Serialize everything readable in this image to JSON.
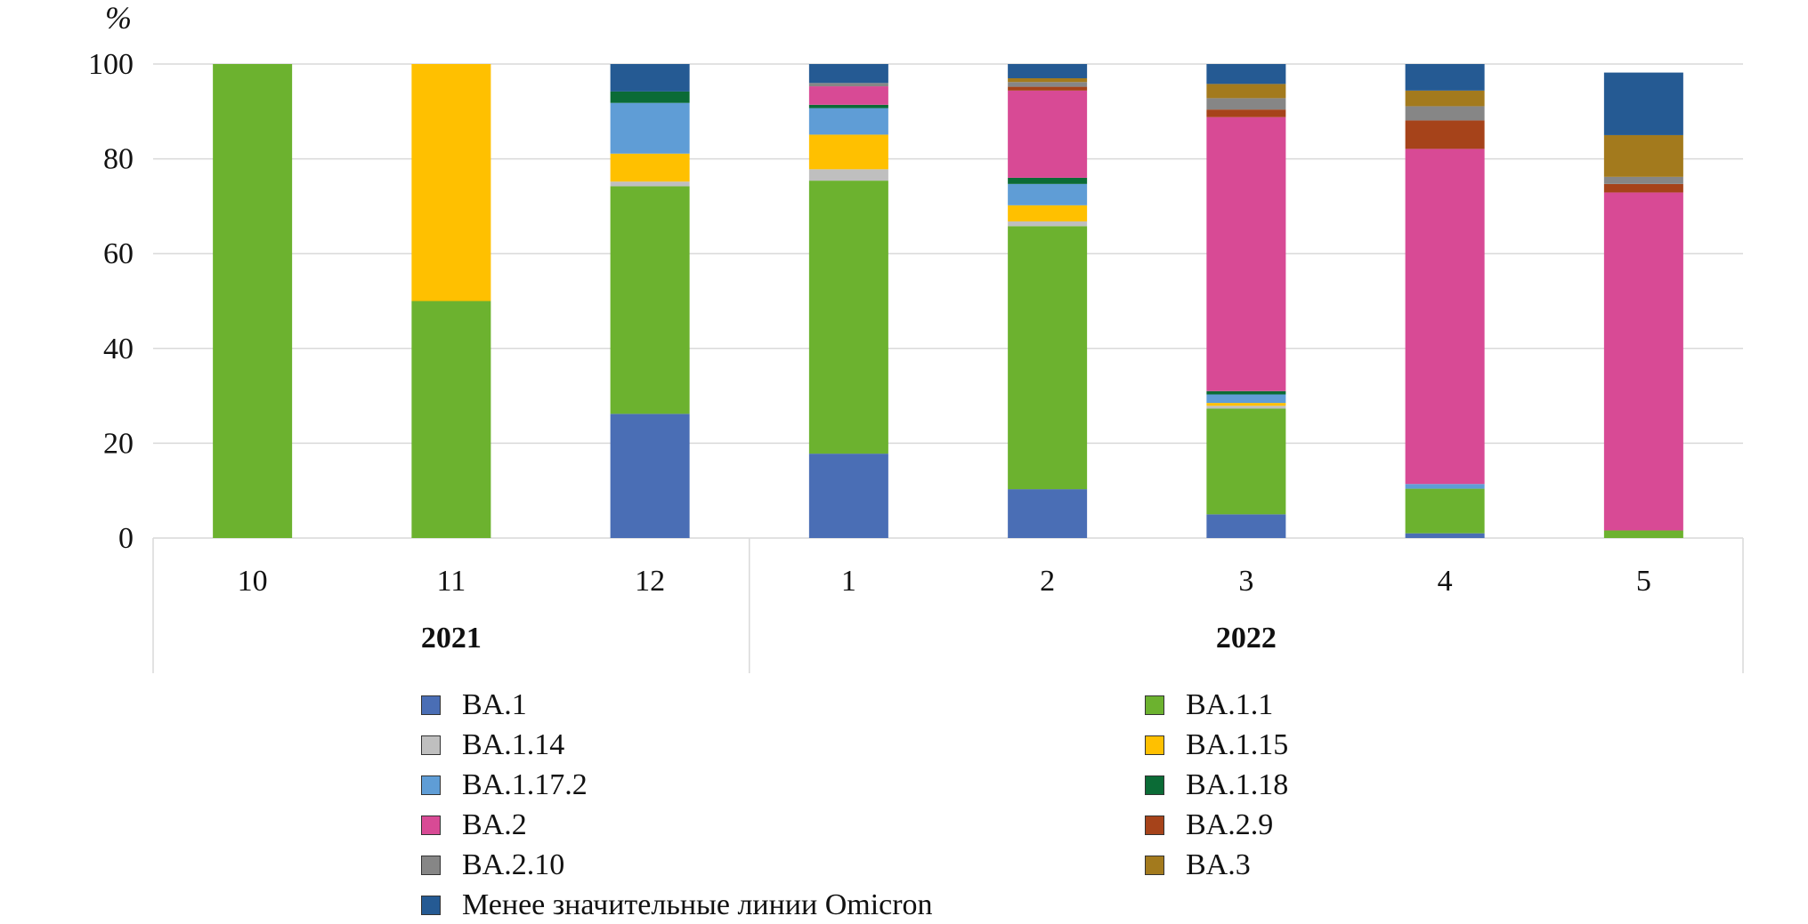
{
  "chart_data": {
    "type": "bar",
    "stacked": true,
    "y_unit_label": "%",
    "ylim": [
      0,
      100
    ],
    "yticks": [
      0,
      20,
      40,
      60,
      80,
      100
    ],
    "grid": true,
    "legend_position": "bottom",
    "categories": [
      "10",
      "11",
      "12",
      "1",
      "2",
      "3",
      "4",
      "5"
    ],
    "groups": [
      {
        "label": "2021",
        "categories": [
          "10",
          "11",
          "12"
        ]
      },
      {
        "label": "2022",
        "categories": [
          "1",
          "2",
          "3",
          "4",
          "5"
        ]
      }
    ],
    "series": [
      {
        "name": "BA.1",
        "color": "#4A6EB5",
        "values": [
          0,
          0,
          26.2,
          17.8,
          10.3,
          5.0,
          1.0,
          0
        ]
      },
      {
        "name": "BA.1.1",
        "color": "#6CB22F",
        "values": [
          100,
          50,
          48.0,
          57.6,
          55.5,
          22.3,
          9.4,
          1.6
        ]
      },
      {
        "name": "BA.1.14",
        "color": "#BFBFBF",
        "values": [
          0,
          0,
          1.0,
          2.4,
          1.0,
          0.6,
          0,
          0
        ]
      },
      {
        "name": "BA.1.15",
        "color": "#FFC000",
        "values": [
          0,
          50,
          5.9,
          7.3,
          3.4,
          0.6,
          0,
          0
        ]
      },
      {
        "name": "BA.1.17.2",
        "color": "#5F9DD6",
        "values": [
          0,
          0,
          10.7,
          5.6,
          4.5,
          1.8,
          1.0,
          0
        ]
      },
      {
        "name": "BA.1.18",
        "color": "#0B6B36",
        "values": [
          0,
          0,
          2.4,
          0.7,
          1.3,
          0.7,
          0,
          0
        ]
      },
      {
        "name": "BA.2",
        "color": "#D84A95",
        "values": [
          0,
          0,
          0,
          3.9,
          18.4,
          57.8,
          70.7,
          71.3
        ]
      },
      {
        "name": "BA.2.9",
        "color": "#A6431A",
        "values": [
          0,
          0,
          0,
          0,
          0.8,
          1.6,
          6.0,
          1.8
        ]
      },
      {
        "name": "BA.2.10",
        "color": "#868686",
        "values": [
          0,
          0,
          0,
          0.7,
          1.0,
          2.4,
          3.0,
          1.5
        ]
      },
      {
        "name": "BA.3",
        "color": "#A37A1D",
        "values": [
          0,
          0,
          0,
          0,
          0.8,
          3.0,
          3.3,
          8.8
        ]
      },
      {
        "name": "Менее значительные линии Omicron",
        "color": "#255A93",
        "values": [
          0,
          0,
          5.8,
          4.0,
          3.0,
          4.2,
          5.6,
          13.2
        ]
      }
    ]
  }
}
